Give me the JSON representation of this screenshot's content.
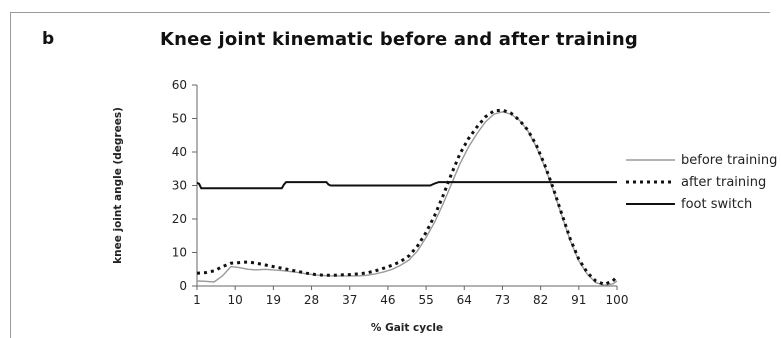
{
  "panel_label": "b",
  "chart_data": {
    "type": "line",
    "title": "Knee joint kinematic before and after training",
    "xlabel": "% Gait cycle",
    "ylabel": "knee joint angle (degrees)",
    "x_tick_labels": [
      "1",
      "10",
      "19",
      "28",
      "37",
      "46",
      "55",
      "64",
      "73",
      "82",
      "91",
      "100"
    ],
    "x_range": [
      1,
      100
    ],
    "y_ticks": [
      0,
      10,
      20,
      30,
      40,
      50,
      60
    ],
    "ylim": [
      0,
      60
    ],
    "grid": false,
    "legend_position": "right",
    "series": [
      {
        "name": "before training",
        "color": "#9a9a9a",
        "dash": "solid",
        "x": [
          1,
          3,
          5,
          7,
          9,
          11,
          13,
          15,
          17,
          19,
          21,
          23,
          25,
          27,
          29,
          31,
          33,
          35,
          37,
          39,
          41,
          43,
          45,
          47,
          49,
          51,
          53,
          55,
          57,
          59,
          61,
          63,
          65,
          67,
          69,
          71,
          73,
          75,
          77,
          79,
          81,
          83,
          85,
          87,
          89,
          91,
          93,
          95,
          97,
          99,
          100
        ],
        "y": [
          1.5,
          1.4,
          1.2,
          3,
          5.8,
          5.5,
          5,
          4.8,
          5,
          4.8,
          4.6,
          4.3,
          4,
          3.6,
          3.3,
          3.1,
          3,
          3,
          3,
          3,
          3.2,
          3.6,
          4.2,
          5,
          6.2,
          7.8,
          10.5,
          14.5,
          19,
          24.5,
          30.5,
          36.5,
          41.5,
          45.5,
          49,
          51.3,
          52,
          51.3,
          49.5,
          46.3,
          41.5,
          35.5,
          28.5,
          21,
          13.5,
          7.5,
          3.5,
          1,
          0.2,
          0.6,
          1.5
        ]
      },
      {
        "name": "after training",
        "color": "#111111",
        "dash": "dotted",
        "x": [
          1,
          3,
          5,
          7,
          9,
          11,
          13,
          15,
          17,
          19,
          21,
          23,
          25,
          27,
          29,
          31,
          33,
          35,
          37,
          39,
          41,
          43,
          45,
          47,
          49,
          51,
          53,
          55,
          57,
          59,
          61,
          63,
          65,
          67,
          69,
          71,
          73,
          75,
          77,
          79,
          81,
          83,
          85,
          87,
          89,
          91,
          93,
          95,
          97,
          99,
          100
        ],
        "y": [
          3.8,
          4,
          4.5,
          5.8,
          6.8,
          7,
          7.2,
          6.8,
          6.3,
          5.8,
          5.3,
          4.8,
          4.3,
          3.8,
          3.4,
          3.2,
          3.2,
          3.3,
          3.4,
          3.6,
          3.9,
          4.5,
          5.3,
          6.2,
          7.3,
          9,
          12,
          16,
          21,
          27,
          33.5,
          39.5,
          44,
          47.5,
          50.5,
          52.3,
          52.5,
          51.6,
          49.5,
          46.5,
          42,
          36,
          29,
          21.5,
          14,
          8,
          4,
          1.5,
          0.5,
          1.5,
          2.8
        ]
      },
      {
        "name": "foot switch",
        "color": "#111111",
        "dash": "solid",
        "x": [
          1,
          1.5,
          2,
          21,
          21.5,
          22,
          31.5,
          32,
          32.5,
          56,
          57,
          58,
          100
        ],
        "y": [
          30.8,
          30.5,
          29.2,
          29.2,
          30.3,
          31,
          31,
          30.3,
          30,
          30,
          30.6,
          31,
          31
        ]
      }
    ]
  }
}
